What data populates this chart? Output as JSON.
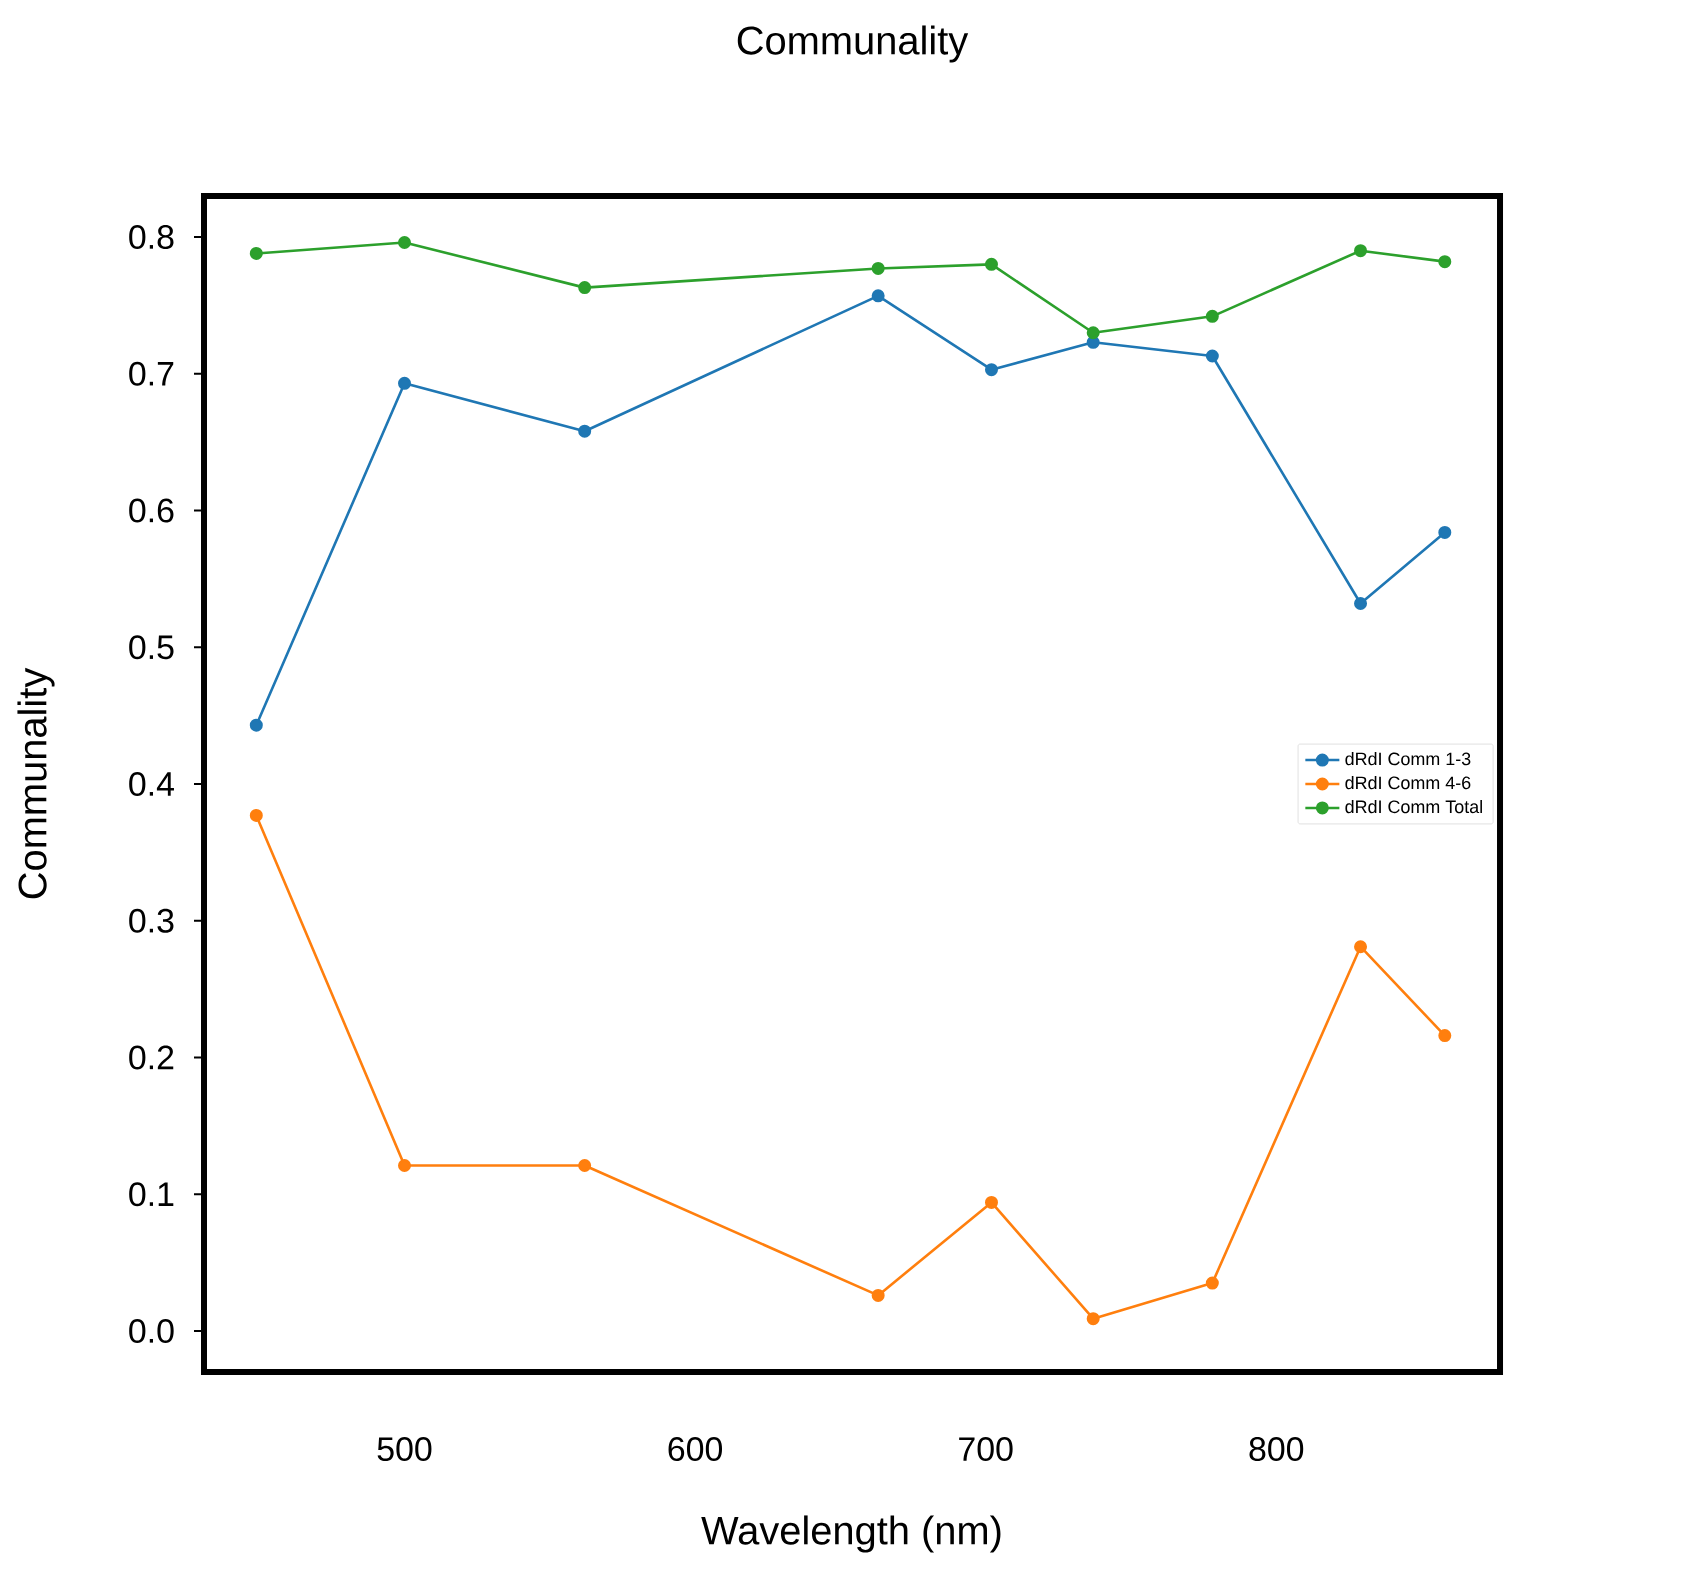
{
  "chart_data": {
    "type": "line",
    "title": "Communality",
    "xlabel": "Wavelength (nm)",
    "ylabel": "Communality",
    "x": [
      449,
      500,
      562,
      663,
      702,
      737,
      778,
      829,
      858
    ],
    "series": [
      {
        "name": "dRdI Comm 1-3",
        "color": "#1f77b4",
        "values": [
          0.443,
          0.693,
          0.658,
          0.757,
          0.703,
          0.723,
          0.713,
          0.532,
          0.584
        ]
      },
      {
        "name": "dRdI Comm 4-6",
        "color": "#ff7f0e",
        "values": [
          0.377,
          0.121,
          0.121,
          0.026,
          0.094,
          0.009,
          0.035,
          0.281,
          0.216
        ]
      },
      {
        "name": "dRdI Comm Total",
        "color": "#2ca02c",
        "values": [
          0.788,
          0.796,
          0.763,
          0.777,
          0.78,
          0.73,
          0.742,
          0.79,
          0.782
        ]
      }
    ],
    "xlim": [
      431,
      877
    ],
    "ylim": [
      -0.03,
      0.83
    ],
    "xticks": [
      500,
      600,
      700,
      800
    ],
    "yticks": [
      {
        "value": 0.0,
        "label": "0.0"
      },
      {
        "value": 0.1,
        "label": "0.1"
      },
      {
        "value": 0.2,
        "label": "0.2"
      },
      {
        "value": 0.3,
        "label": "0.3"
      },
      {
        "value": 0.4,
        "label": "0.4"
      },
      {
        "value": 0.5,
        "label": "0.5"
      },
      {
        "value": 0.6,
        "label": "0.6"
      },
      {
        "value": 0.7,
        "label": "0.7"
      },
      {
        "value": 0.8,
        "label": "0.8"
      }
    ],
    "legend": "right",
    "marker": "circle",
    "line_style": "solid",
    "grid": false
  }
}
